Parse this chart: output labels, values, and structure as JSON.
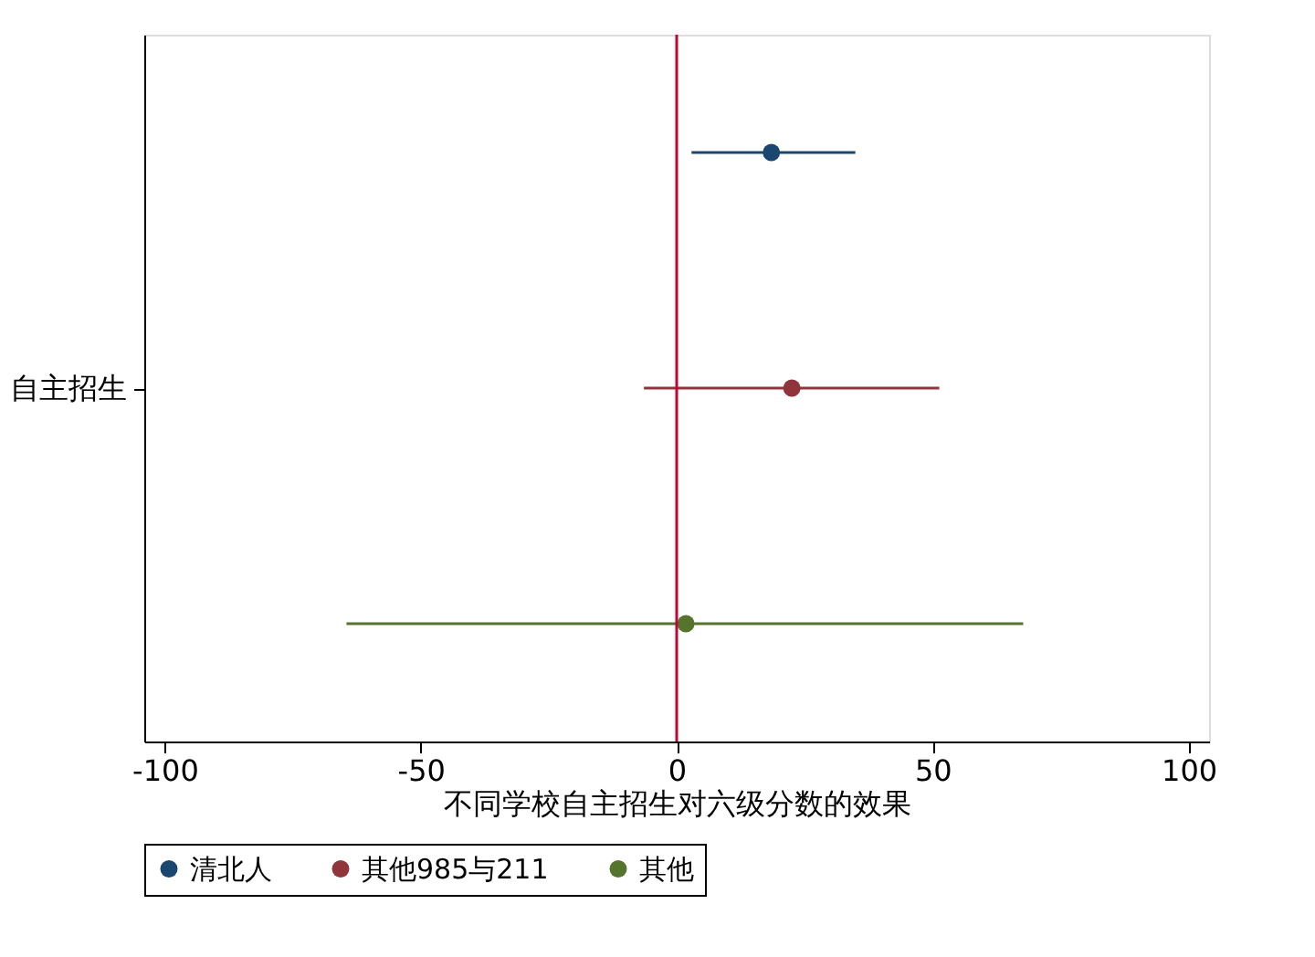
{
  "chart_data": {
    "type": "scatter",
    "orientation": "horizontal",
    "xlabel": "不同学校自主招生对六级分数的效果",
    "categories": [
      null,
      "自主招生",
      null
    ],
    "series": [
      {
        "name": "清北人",
        "color": "#1a476f",
        "values": [
          18.5,
          null,
          null
        ],
        "errors": [
          [
            2.9,
            34.9
          ],
          null,
          null
        ]
      },
      {
        "name": "其他985与211",
        "color": "#90353b",
        "values": [
          null,
          22.5,
          null
        ],
        "errors": [
          null,
          [
            -6.4,
            51.3
          ],
          null
        ]
      },
      {
        "name": "其他",
        "color": "#55752f",
        "values": [
          null,
          null,
          1.8
        ],
        "errors": [
          null,
          null,
          [
            -64.5,
            67.7
          ]
        ]
      }
    ],
    "xlim": [
      -104,
      104
    ],
    "xticks": [
      -100,
      -50,
      0,
      50,
      100
    ],
    "ref_lines": [
      {
        "axis": "x",
        "value": 0,
        "color": "#c10534"
      }
    ],
    "marker": "circle",
    "grid": false,
    "legend": "bottom"
  }
}
